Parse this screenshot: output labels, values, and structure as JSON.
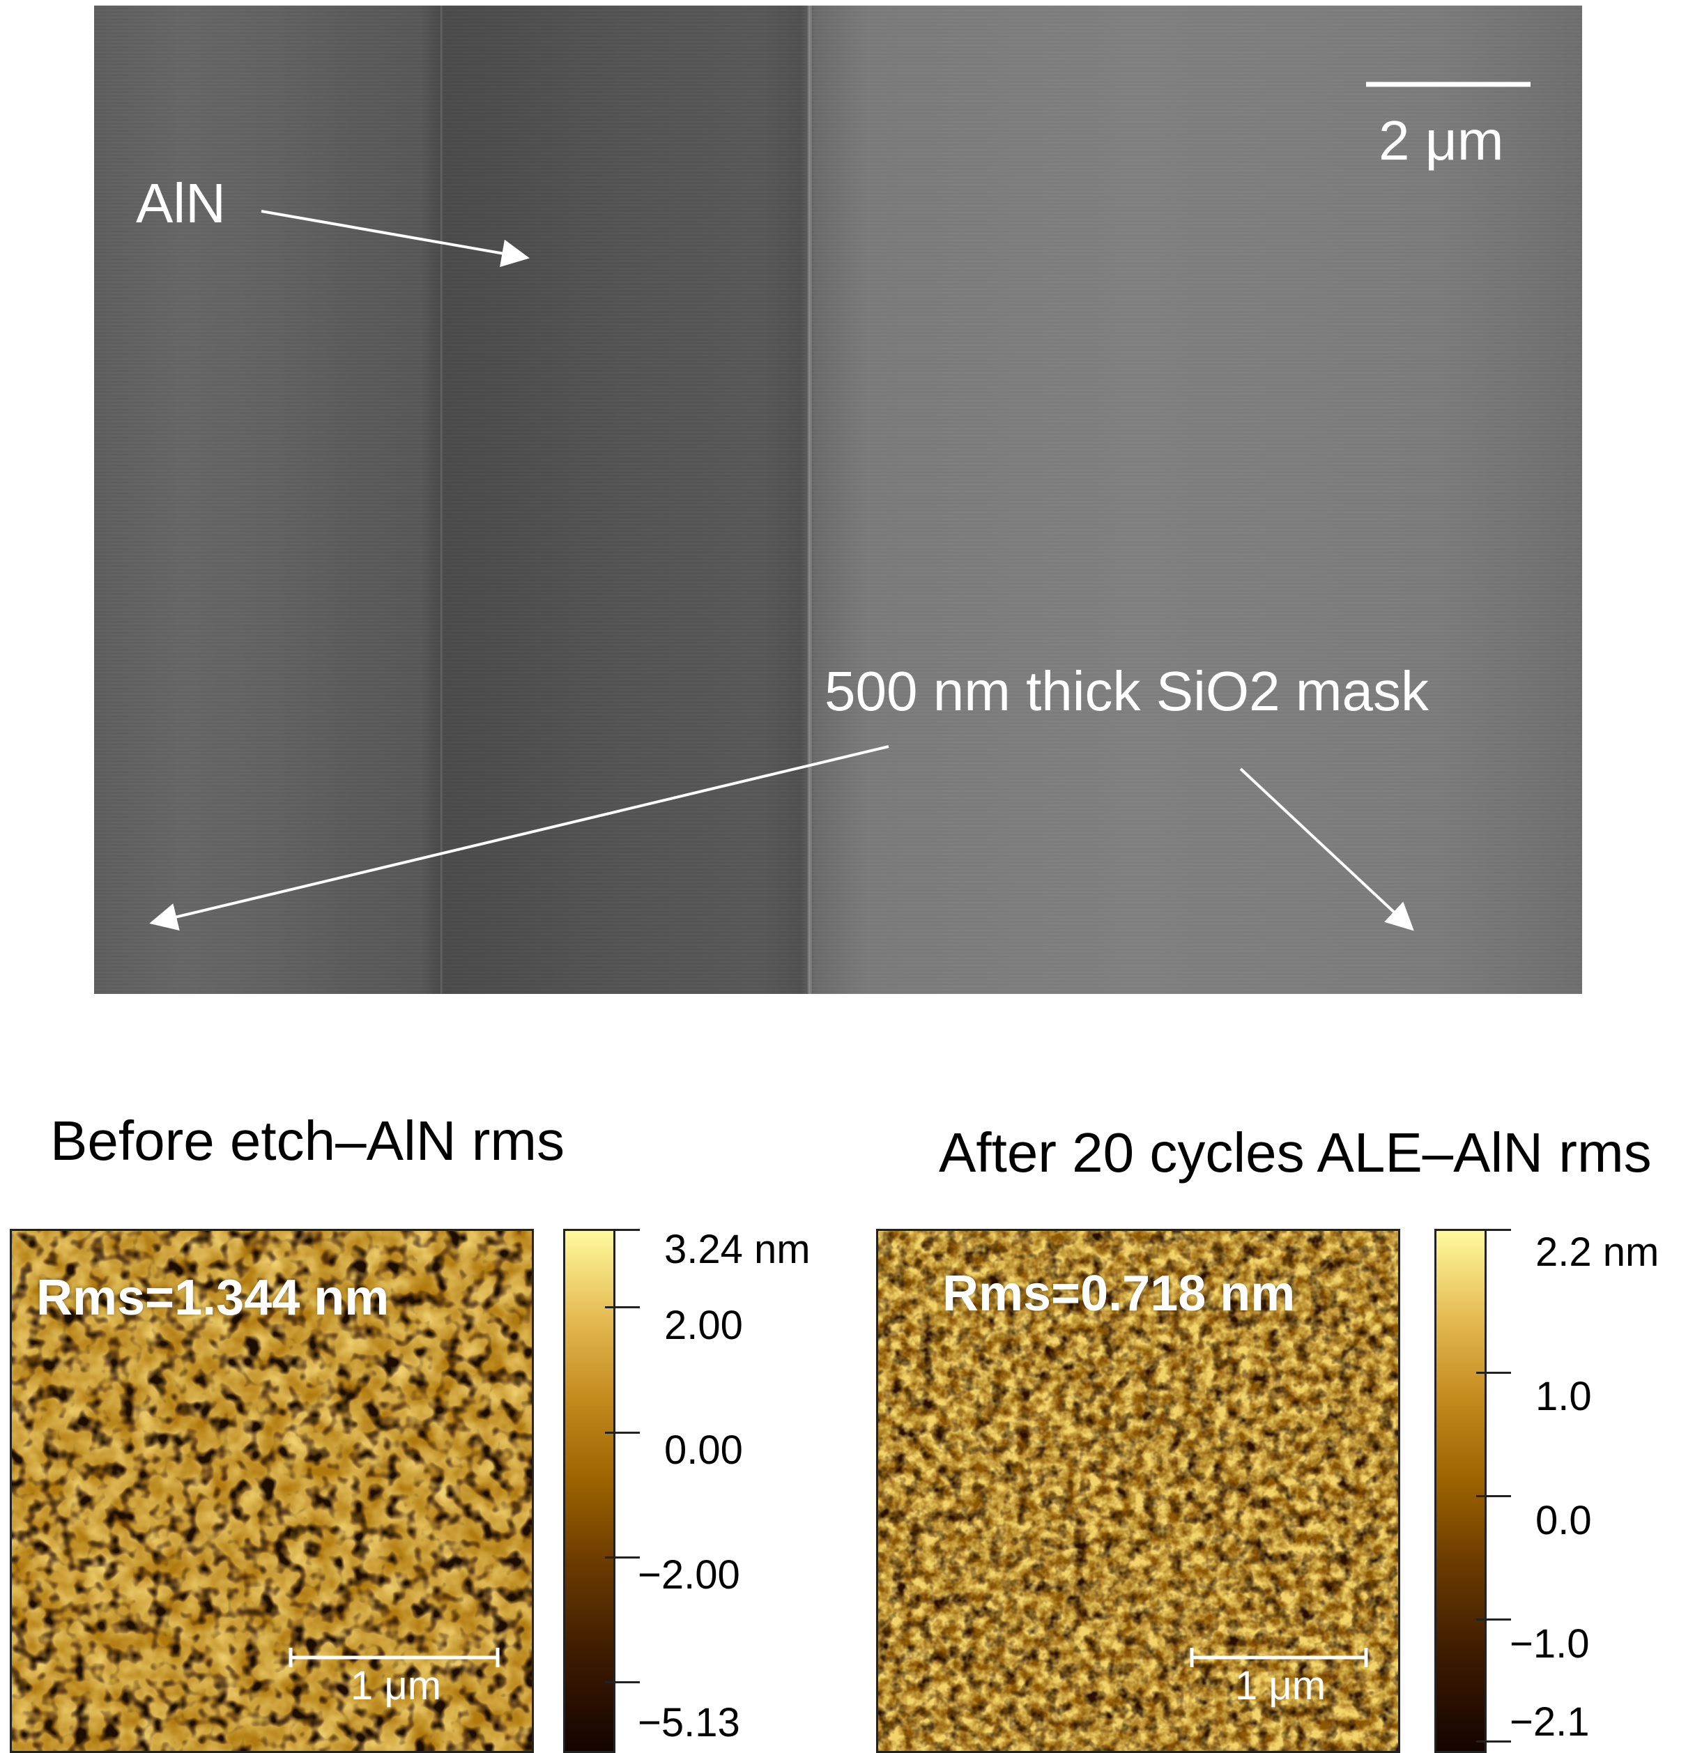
{
  "sem_image": {
    "label_aln": "AlN",
    "scalebar_label": "2 μm",
    "mask_label": "500 nm thick SiO2 mask"
  },
  "afm_before": {
    "title": "Before etch–AlN rms",
    "rms_label": "Rms=1.344 nm",
    "scalebar_label": "1 μm",
    "colorbar": {
      "max_label": "3.24 nm",
      "ticks": [
        "2.00",
        "0.00",
        "−2.00"
      ],
      "min_label": "−5.13"
    }
  },
  "afm_after": {
    "title": "After 20 cycles ALE–AlN rms",
    "rms_label": "Rms=0.718 nm",
    "scalebar_label": "1 μm",
    "colorbar": {
      "max_label": "2.2 nm",
      "ticks": [
        "1.0",
        "0.0",
        "−1.0"
      ],
      "min_label": "−2.1"
    }
  },
  "colors": {
    "afm_dark": "#1a0800",
    "afm_mid": "#9c6300",
    "afm_light": "#fff59a",
    "sem_gray": "#6b6b6b"
  }
}
